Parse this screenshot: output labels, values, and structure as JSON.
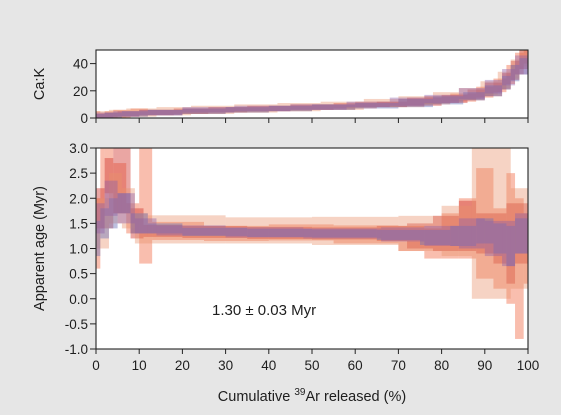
{
  "chart_data": [
    {
      "type": "step",
      "id": "cak",
      "ylabel": "Ca:K",
      "xlim": [
        0,
        100
      ],
      "ylim": [
        0,
        50
      ],
      "yticks": [
        0,
        20,
        40
      ],
      "grid": false,
      "legend": "none",
      "series_colors": [
        "#f0633f",
        "#d13a34",
        "#e9906b",
        "#6d73b8",
        "#8e5fa8"
      ],
      "series": [
        {
          "steps": [
            [
              0,
              1,
              2,
              3
            ],
            [
              1,
              2,
              1,
              3
            ],
            [
              2,
              4,
              2,
              3
            ],
            [
              4,
              8,
              3,
              3
            ],
            [
              8,
              12,
              4,
              3
            ],
            [
              12,
              20,
              4,
              2
            ],
            [
              20,
              30,
              5,
              2
            ],
            [
              30,
              40,
              6,
              2
            ],
            [
              40,
              50,
              7,
              2
            ],
            [
              50,
              60,
              8,
              2
            ],
            [
              60,
              70,
              10,
              2
            ],
            [
              70,
              76,
              11,
              3
            ],
            [
              76,
              82,
              13,
              3
            ],
            [
              82,
              88,
              15,
              3
            ],
            [
              88,
              92,
              19,
              4
            ],
            [
              92,
              95,
              24,
              5
            ],
            [
              95,
              97,
              32,
              7
            ],
            [
              97,
              99,
              40,
              8
            ],
            [
              99,
              100,
              46,
              6
            ]
          ]
        },
        {
          "steps": [
            [
              0,
              2,
              1,
              2
            ],
            [
              2,
              5,
              2,
              2
            ],
            [
              5,
              10,
              3,
              2
            ],
            [
              10,
              18,
              4,
              2
            ],
            [
              18,
              26,
              5,
              2
            ],
            [
              26,
              35,
              6,
              2
            ],
            [
              35,
              45,
              7,
              2
            ],
            [
              45,
              55,
              8,
              2
            ],
            [
              55,
              65,
              9,
              2
            ],
            [
              65,
              72,
              10,
              2
            ],
            [
              72,
              80,
              12,
              3
            ],
            [
              80,
              86,
              14,
              3
            ],
            [
              86,
              90,
              17,
              4
            ],
            [
              90,
              94,
              21,
              5
            ],
            [
              94,
              96,
              27,
              6
            ],
            [
              96,
              98,
              35,
              7
            ],
            [
              98,
              100,
              43,
              7
            ]
          ]
        },
        {
          "steps": [
            [
              0,
              3,
              2,
              3
            ],
            [
              3,
              7,
              3,
              3
            ],
            [
              7,
              14,
              4,
              3
            ],
            [
              14,
              22,
              5,
              3
            ],
            [
              22,
              32,
              6,
              3
            ],
            [
              32,
              42,
              7,
              3
            ],
            [
              42,
              52,
              8,
              3
            ],
            [
              52,
              62,
              9,
              3
            ],
            [
              62,
              70,
              11,
              3
            ],
            [
              70,
              78,
              13,
              3
            ],
            [
              78,
              84,
              15,
              4
            ],
            [
              84,
              89,
              18,
              4
            ],
            [
              89,
              93,
              22,
              5
            ],
            [
              93,
              96,
              28,
              6
            ],
            [
              96,
              98,
              36,
              7
            ],
            [
              98,
              100,
              44,
              6
            ]
          ]
        },
        {
          "steps": [
            [
              0,
              2,
              1,
              2
            ],
            [
              2,
              6,
              2,
              2
            ],
            [
              6,
              12,
              3,
              2
            ],
            [
              12,
              20,
              4,
              2
            ],
            [
              20,
              30,
              5,
              2
            ],
            [
              30,
              40,
              6,
              2
            ],
            [
              40,
              50,
              7,
              2
            ],
            [
              50,
              60,
              8,
              2
            ],
            [
              60,
              70,
              9,
              2
            ],
            [
              70,
              78,
              11,
              3
            ],
            [
              78,
              85,
              13,
              3
            ],
            [
              85,
              90,
              16,
              3
            ],
            [
              90,
              94,
              20,
              4
            ],
            [
              94,
              96,
              26,
              5
            ],
            [
              96,
              98,
              33,
              6
            ],
            [
              98,
              100,
              38,
              6
            ]
          ]
        },
        {
          "steps": [
            [
              0,
              4,
              2,
              2
            ],
            [
              4,
              10,
              3,
              2
            ],
            [
              10,
              20,
              4,
              2
            ],
            [
              20,
              32,
              6,
              2
            ],
            [
              32,
              45,
              7,
              2
            ],
            [
              45,
              58,
              8,
              2
            ],
            [
              58,
              68,
              10,
              2
            ],
            [
              68,
              76,
              12,
              3
            ],
            [
              76,
              84,
              14,
              3
            ],
            [
              84,
              90,
              18,
              4
            ],
            [
              90,
              94,
              23,
              5
            ],
            [
              94,
              97,
              30,
              6
            ],
            [
              97,
              100,
              39,
              7
            ]
          ]
        }
      ]
    },
    {
      "type": "step",
      "id": "age",
      "ylabel": "Apparent age (Myr)",
      "xlabel_prefix": "Cumulative ",
      "xlabel_super": "39",
      "xlabel_suffix": "Ar released (%)",
      "xlim": [
        0,
        100
      ],
      "ylim": [
        -1.0,
        3.0
      ],
      "xticks": [
        0,
        10,
        20,
        30,
        40,
        50,
        60,
        70,
        80,
        90,
        100
      ],
      "yticks": [
        "-1.0",
        "-0.5",
        "0.0",
        "0.5",
        "1.0",
        "1.5",
        "2.0",
        "2.5",
        "3.0"
      ],
      "grid": false,
      "legend": "none",
      "annotation": "1.30 ± 0.03 Myr",
      "series_colors": [
        "#f0633f",
        "#d13a34",
        "#e9906b",
        "#6d73b8",
        "#8e5fa8"
      ],
      "series": [
        {
          "steps": [
            [
              0,
              1,
              1.3,
              0.7
            ],
            [
              1,
              2,
              2.3,
              0.9
            ],
            [
              2,
              4,
              2.6,
              0.5
            ],
            [
              4,
              7,
              2.2,
              0.5
            ],
            [
              7,
              10,
              1.6,
              0.3
            ],
            [
              10,
              13,
              1.9,
              1.2
            ],
            [
              13,
              25,
              1.35,
              0.18
            ],
            [
              25,
              40,
              1.3,
              0.15
            ],
            [
              40,
              55,
              1.32,
              0.16
            ],
            [
              55,
              70,
              1.28,
              0.18
            ],
            [
              70,
              76,
              1.2,
              0.25
            ],
            [
              76,
              80,
              1.1,
              0.3
            ],
            [
              80,
              84,
              1.25,
              0.45
            ],
            [
              84,
              88,
              1.4,
              0.6
            ],
            [
              88,
              92,
              1.5,
              1.1
            ],
            [
              92,
              95,
              1.0,
              0.8
            ],
            [
              95,
              97,
              1.2,
              1.3
            ],
            [
              97,
              99,
              0.6,
              1.4
            ],
            [
              99,
              100,
              1.0,
              0.7
            ]
          ]
        },
        {
          "steps": [
            [
              0,
              2,
              1.8,
              0.4
            ],
            [
              2,
              4,
              2.1,
              0.7
            ],
            [
              4,
              8,
              2.4,
              0.7
            ],
            [
              8,
              11,
              1.5,
              0.3
            ],
            [
              11,
              20,
              1.35,
              0.12
            ],
            [
              20,
              35,
              1.33,
              0.12
            ],
            [
              35,
              50,
              1.31,
              0.12
            ],
            [
              50,
              65,
              1.3,
              0.12
            ],
            [
              65,
              72,
              1.3,
              0.15
            ],
            [
              72,
              78,
              1.25,
              0.25
            ],
            [
              78,
              84,
              1.3,
              0.35
            ],
            [
              84,
              88,
              1.45,
              0.5
            ],
            [
              88,
              92,
              1.3,
              0.4
            ],
            [
              92,
              95,
              1.2,
              0.5
            ],
            [
              95,
              97,
              1.1,
              0.8
            ],
            [
              97,
              100,
              1.3,
              0.6
            ]
          ]
        },
        {
          "steps": [
            [
              0,
              3,
              1.5,
              0.5
            ],
            [
              3,
              6,
              2.0,
              0.5
            ],
            [
              6,
              9,
              1.8,
              0.4
            ],
            [
              9,
              12,
              1.4,
              0.3
            ],
            [
              12,
              30,
              1.38,
              0.28
            ],
            [
              30,
              50,
              1.36,
              0.26
            ],
            [
              50,
              70,
              1.35,
              0.28
            ],
            [
              70,
              80,
              1.3,
              0.35
            ],
            [
              80,
              87,
              1.35,
              0.5
            ],
            [
              87,
              96,
              1.5,
              1.5
            ],
            [
              96,
              100,
              1.2,
              1.0
            ]
          ]
        },
        {
          "steps": [
            [
              0,
              1,
              1.2,
              0.35
            ],
            [
              1,
              3,
              1.5,
              0.3
            ],
            [
              3,
              5,
              1.7,
              0.3
            ],
            [
              5,
              8,
              1.9,
              0.2
            ],
            [
              8,
              12,
              1.5,
              0.2
            ],
            [
              12,
              20,
              1.4,
              0.1
            ],
            [
              20,
              35,
              1.33,
              0.08
            ],
            [
              35,
              50,
              1.31,
              0.08
            ],
            [
              50,
              65,
              1.3,
              0.08
            ],
            [
              65,
              75,
              1.27,
              0.1
            ],
            [
              75,
              82,
              1.22,
              0.15
            ],
            [
              82,
              88,
              1.25,
              0.2
            ],
            [
              88,
              92,
              1.35,
              0.25
            ],
            [
              92,
              95,
              1.2,
              0.3
            ],
            [
              95,
              97,
              1.05,
              0.4
            ],
            [
              97,
              100,
              1.25,
              0.35
            ]
          ]
        },
        {
          "steps": [
            [
              0,
              2,
              1.6,
              0.3
            ],
            [
              2,
              5,
              2.0,
              0.35
            ],
            [
              5,
              9,
              1.8,
              0.3
            ],
            [
              9,
              14,
              1.45,
              0.15
            ],
            [
              14,
              30,
              1.36,
              0.1
            ],
            [
              30,
              48,
              1.32,
              0.1
            ],
            [
              48,
              66,
              1.3,
              0.1
            ],
            [
              66,
              76,
              1.28,
              0.14
            ],
            [
              76,
              84,
              1.25,
              0.2
            ],
            [
              84,
              90,
              1.3,
              0.3
            ],
            [
              90,
              94,
              1.2,
              0.35
            ],
            [
              94,
              97,
              1.1,
              0.45
            ],
            [
              97,
              100,
              1.3,
              0.4
            ]
          ]
        }
      ]
    }
  ]
}
